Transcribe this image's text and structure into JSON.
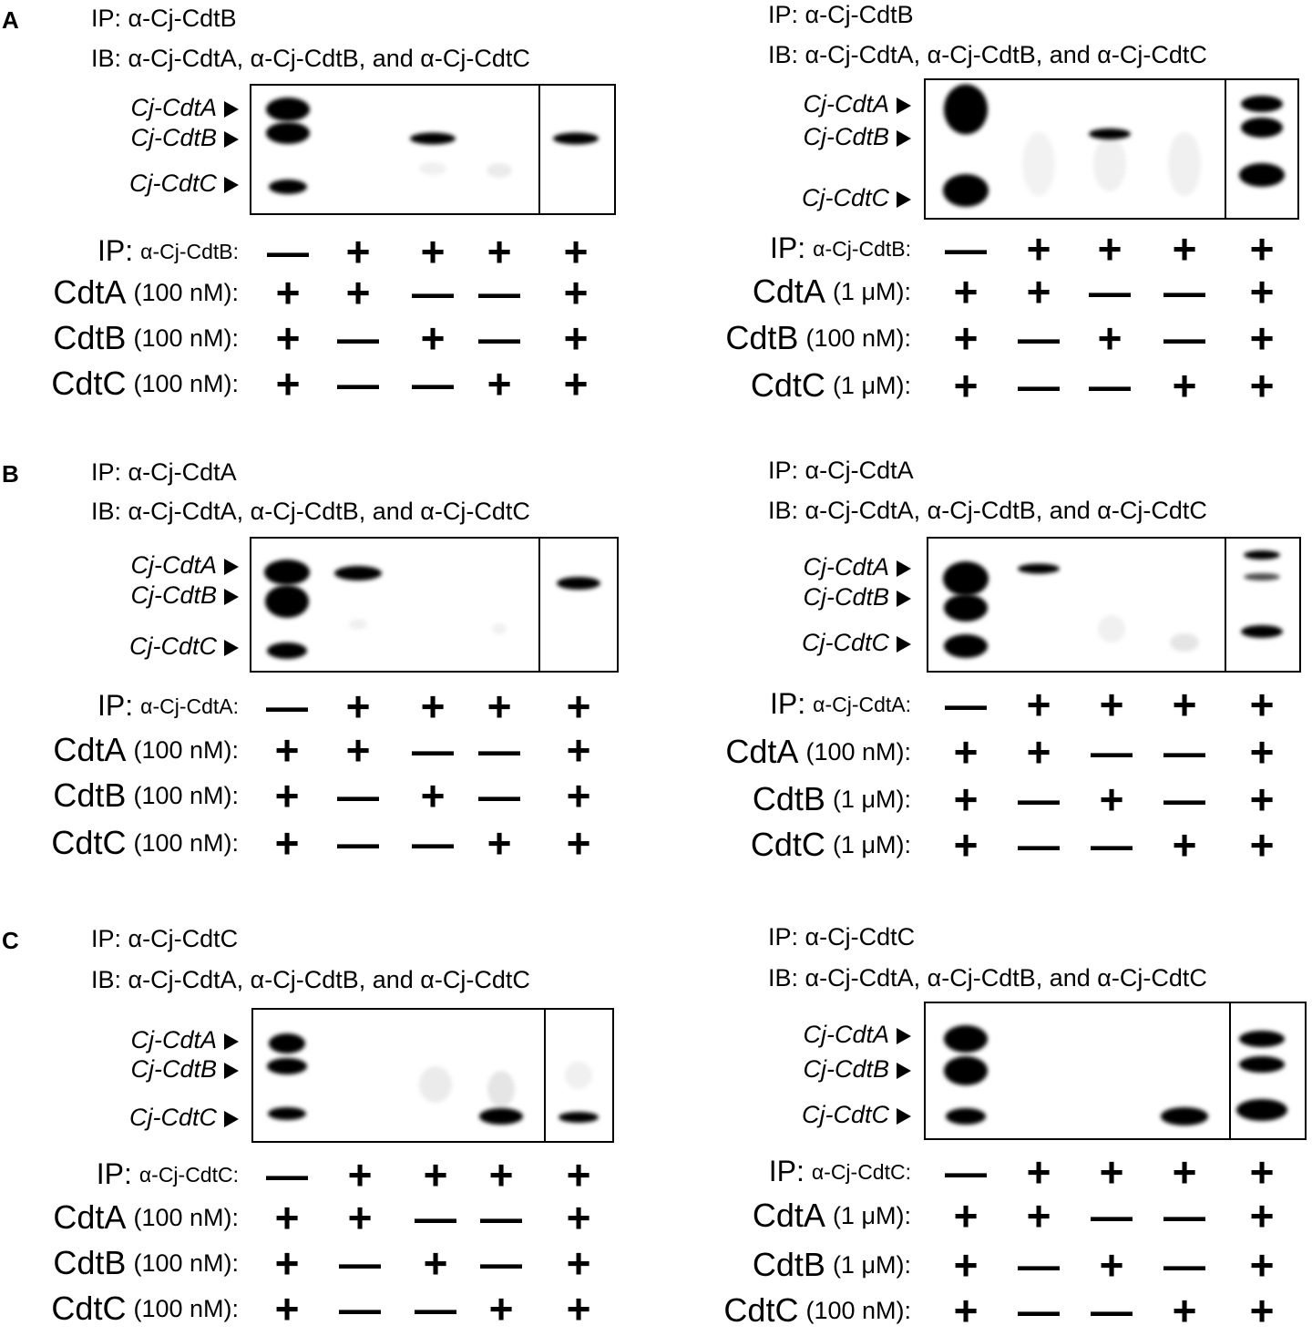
{
  "panels": [
    {
      "letter": "A",
      "ip": "IP: α-Cj-CdtB",
      "ib": "IB: α-Cj-CdtA, α-Cj-CdtB, and α-Cj-CdtC",
      "band_labels": [
        "Cj-CdtA",
        "Cj-CdtB",
        "Cj-CdtC"
      ],
      "rows": [
        {
          "label": "IP:",
          "detail": "α-Cj-CdtB:",
          "signs": [
            "—",
            "+",
            "+",
            "+",
            "+"
          ]
        },
        {
          "label": "CdtA",
          "detail": "(100 nM):",
          "signs": [
            "+",
            "+",
            "—",
            "—",
            "+"
          ]
        },
        {
          "label": "CdtB",
          "detail": "(100 nM):",
          "signs": [
            "+",
            "—",
            "+",
            "—",
            "+"
          ]
        },
        {
          "label": "CdtC",
          "detail": "(100 nM):",
          "signs": [
            "+",
            "—",
            "—",
            "+",
            "+"
          ]
        }
      ]
    },
    {
      "ip": "IP: α-Cj-CdtB",
      "ib": "IB: α-Cj-CdtA, α-Cj-CdtB, and α-Cj-CdtC",
      "band_labels": [
        "Cj-CdtA",
        "Cj-CdtB",
        "Cj-CdtC"
      ],
      "rows": [
        {
          "label": "IP:",
          "detail": "α-Cj-CdtB:",
          "signs": [
            "—",
            "+",
            "+",
            "+",
            "+"
          ]
        },
        {
          "label": "CdtA",
          "detail": "(1 μM):",
          "signs": [
            "+",
            "+",
            "—",
            "—",
            "+"
          ]
        },
        {
          "label": "CdtB",
          "detail": "(100 nM):",
          "signs": [
            "+",
            "—",
            "+",
            "—",
            "+"
          ]
        },
        {
          "label": "CdtC",
          "detail": "(1 μM):",
          "signs": [
            "+",
            "—",
            "—",
            "+",
            "+"
          ]
        }
      ]
    },
    {
      "letter": "B",
      "ip": "IP: α-Cj-CdtA",
      "ib": "IB: α-Cj-CdtA, α-Cj-CdtB, and α-Cj-CdtC",
      "band_labels": [
        "Cj-CdtA",
        "Cj-CdtB",
        "Cj-CdtC"
      ],
      "rows": [
        {
          "label": "IP:",
          "detail": "α-Cj-CdtA:",
          "signs": [
            "—",
            "+",
            "+",
            "+",
            "+"
          ]
        },
        {
          "label": "CdtA",
          "detail": "(100 nM):",
          "signs": [
            "+",
            "+",
            "—",
            "—",
            "+"
          ]
        },
        {
          "label": "CdtB",
          "detail": "(100 nM):",
          "signs": [
            "+",
            "—",
            "+",
            "—",
            "+"
          ]
        },
        {
          "label": "CdtC",
          "detail": "(100 nM):",
          "signs": [
            "+",
            "—",
            "—",
            "+",
            "+"
          ]
        }
      ]
    },
    {
      "ip": "IP: α-Cj-CdtA",
      "ib": "IB: α-Cj-CdtA, α-Cj-CdtB, and α-Cj-CdtC",
      "band_labels": [
        "Cj-CdtA",
        "Cj-CdtB",
        "Cj-CdtC"
      ],
      "rows": [
        {
          "label": "IP:",
          "detail": "α-Cj-CdtA:",
          "signs": [
            "—",
            "+",
            "+",
            "+",
            "+"
          ]
        },
        {
          "label": "CdtA",
          "detail": "(100 nM):",
          "signs": [
            "+",
            "+",
            "—",
            "—",
            "+"
          ]
        },
        {
          "label": "CdtB",
          "detail": "(1 μM):",
          "signs": [
            "+",
            "—",
            "+",
            "—",
            "+"
          ]
        },
        {
          "label": "CdtC",
          "detail": "(1 μM):",
          "signs": [
            "+",
            "—",
            "—",
            "+",
            "+"
          ]
        }
      ]
    },
    {
      "letter": "C",
      "ip": "IP: α-Cj-CdtC",
      "ib": "IB: α-Cj-CdtA, α-Cj-CdtB, and α-Cj-CdtC",
      "band_labels": [
        "Cj-CdtA",
        "Cj-CdtB",
        "Cj-CdtC"
      ],
      "rows": [
        {
          "label": "IP:",
          "detail": "α-Cj-CdtC:",
          "signs": [
            "—",
            "+",
            "+",
            "+",
            "+"
          ]
        },
        {
          "label": "CdtA",
          "detail": "(100 nM):",
          "signs": [
            "+",
            "+",
            "—",
            "—",
            "+"
          ]
        },
        {
          "label": "CdtB",
          "detail": "(100 nM):",
          "signs": [
            "+",
            "—",
            "+",
            "—",
            "+"
          ]
        },
        {
          "label": "CdtC",
          "detail": "(100 nM):",
          "signs": [
            "+",
            "—",
            "—",
            "+",
            "+"
          ]
        }
      ]
    },
    {
      "ip": "IP: α-Cj-CdtC",
      "ib": "IB: α-Cj-CdtA, α-Cj-CdtB, and α-Cj-CdtC",
      "band_labels": [
        "Cj-CdtA",
        "Cj-CdtB",
        "Cj-CdtC"
      ],
      "rows": [
        {
          "label": "IP:",
          "detail": "α-Cj-CdtC:",
          "signs": [
            "—",
            "+",
            "+",
            "+",
            "+"
          ]
        },
        {
          "label": "CdtA",
          "detail": "(1 μM):",
          "signs": [
            "+",
            "+",
            "—",
            "—",
            "+"
          ]
        },
        {
          "label": "CdtB",
          "detail": "(1 μM):",
          "signs": [
            "+",
            "—",
            "+",
            "—",
            "+"
          ]
        },
        {
          "label": "CdtC",
          "detail": "(100 nM):",
          "signs": [
            "+",
            "—",
            "—",
            "+",
            "+"
          ]
        }
      ]
    }
  ]
}
